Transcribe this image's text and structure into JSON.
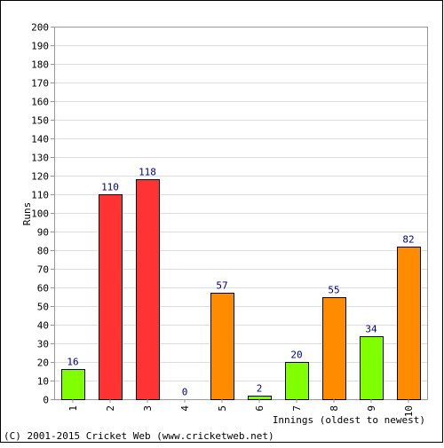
{
  "chart_data": {
    "type": "bar",
    "title": "",
    "xlabel": "Innings (oldest to newest)",
    "ylabel": "Runs",
    "ylim": [
      0,
      200
    ],
    "ytick_step": 10,
    "grid": true,
    "categories": [
      "1",
      "2",
      "3",
      "4",
      "5",
      "6",
      "7",
      "8",
      "9",
      "10"
    ],
    "values": [
      16,
      110,
      118,
      0,
      57,
      2,
      20,
      55,
      34,
      82
    ],
    "bar_colors": [
      "#80ff00",
      "#ff3333",
      "#ff3333",
      "#80ff00",
      "#ff8c00",
      "#80ff00",
      "#80ff00",
      "#ff8c00",
      "#80ff00",
      "#ff8c00"
    ],
    "value_label_color": "#000080"
  },
  "footer": {
    "copyright": "(C) 2001-2015 Cricket Web (www.cricketweb.net)"
  }
}
